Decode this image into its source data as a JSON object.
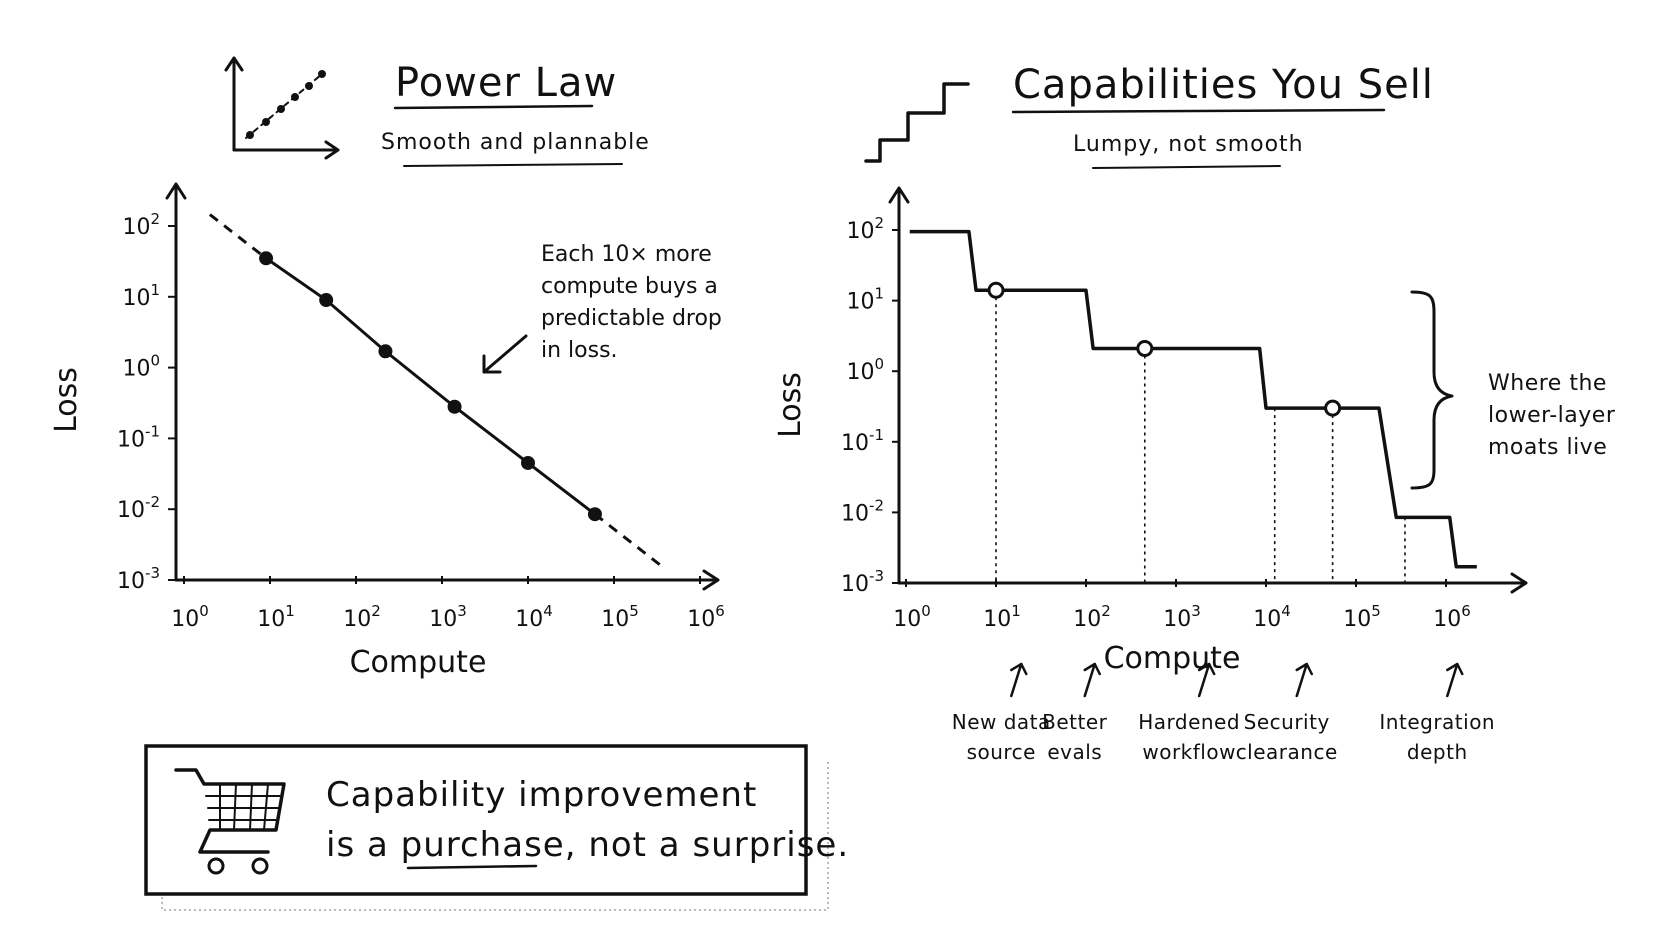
{
  "left_panel": {
    "title": "Power Law",
    "subtitle": "Smooth and plannable",
    "note_lines": [
      "Each 10× more",
      "compute buys a",
      "predictable drop",
      "in loss."
    ]
  },
  "right_panel": {
    "title": "Capabilities You Sell",
    "subtitle": "Lumpy, not smooth",
    "moat_lines": [
      "Where the",
      "lower-layer",
      "moats live"
    ],
    "capability_labels": [
      [
        "New data",
        "source"
      ],
      [
        "Better",
        "evals"
      ],
      [
        "Hardened",
        "workflow"
      ],
      [
        "Security",
        "clearance"
      ],
      [
        "Integration",
        "depth"
      ]
    ]
  },
  "callout": {
    "line1": "Capability improvement",
    "line2_prefix": "is a ",
    "line2_emphasis": "purchase",
    "line2_suffix": ", not a surprise."
  },
  "icons": {
    "left_mini_chart": "dotted-line-chart-icon",
    "right_mini_chart": "staircase-icon",
    "callout": "shopping-cart-icon"
  },
  "chart_data": [
    {
      "type": "line",
      "scale": "log-log",
      "xlabel": "Compute",
      "ylabel": "Loss",
      "xlim": [
        1,
        1000000
      ],
      "ylim": [
        0.001,
        100
      ],
      "x_ticks": [
        1,
        10,
        100,
        1000,
        10000,
        100000,
        1000000
      ],
      "y_ticks": [
        0.001,
        0.01,
        0.1,
        1,
        10,
        100
      ],
      "x_tick_labels": [
        "10^0",
        "10^1",
        "10^2",
        "10^3",
        "10^4",
        "10^5",
        "10^6"
      ],
      "y_tick_labels": [
        "10^-3",
        "10^-2",
        "10^-1",
        "10^0",
        "10^1",
        "10^2"
      ],
      "series": [
        {
          "x": [
            9,
            45,
            220,
            1400,
            10000,
            60000
          ],
          "y": [
            35,
            9,
            1.7,
            0.28,
            0.045,
            0.0085
          ]
        }
      ],
      "extrapolation_x": [
        [
          2,
          9
        ],
        [
          60000,
          400000
        ]
      ],
      "annotation": "Each 10× more compute buys a predictable drop in loss."
    },
    {
      "type": "line",
      "scale": "log-log",
      "step": true,
      "xlabel": "Compute",
      "ylabel": "Loss",
      "xlim": [
        1,
        1000000
      ],
      "ylim": [
        0.001,
        100
      ],
      "x_ticks": [
        1,
        10,
        100,
        1000,
        10000,
        100000,
        1000000
      ],
      "y_ticks": [
        0.001,
        0.01,
        0.1,
        1,
        10,
        100
      ],
      "x_tick_labels": [
        "10^0",
        "10^1",
        "10^2",
        "10^3",
        "10^4",
        "10^5",
        "10^6"
      ],
      "y_tick_labels": [
        "10^-3",
        "10^-2",
        "10^-1",
        "10^0",
        "10^1",
        "10^2"
      ],
      "steps": [
        {
          "x_start": 1.1,
          "x_end": 5,
          "y": 95
        },
        {
          "x_start": 6,
          "x_end": 100,
          "y": 14
        },
        {
          "x_start": 120,
          "x_end": 8500,
          "y": 2.1
        },
        {
          "x_start": 10000,
          "x_end": 180000,
          "y": 0.3
        },
        {
          "x_start": 280000,
          "x_end": 1100000,
          "y": 0.0085
        },
        {
          "x_start": 1300000,
          "x_end": 2200000,
          "y": 0.0017
        }
      ],
      "markers": [
        {
          "x": 10,
          "y": 14
        },
        {
          "x": 450,
          "y": 2.1
        },
        {
          "x": 55000,
          "y": 0.3
        }
      ],
      "event_x": [
        10,
        450,
        12500,
        55000,
        350000
      ],
      "label_anchor_x": [
        8,
        75,
        1400,
        17000,
        800000
      ]
    }
  ]
}
